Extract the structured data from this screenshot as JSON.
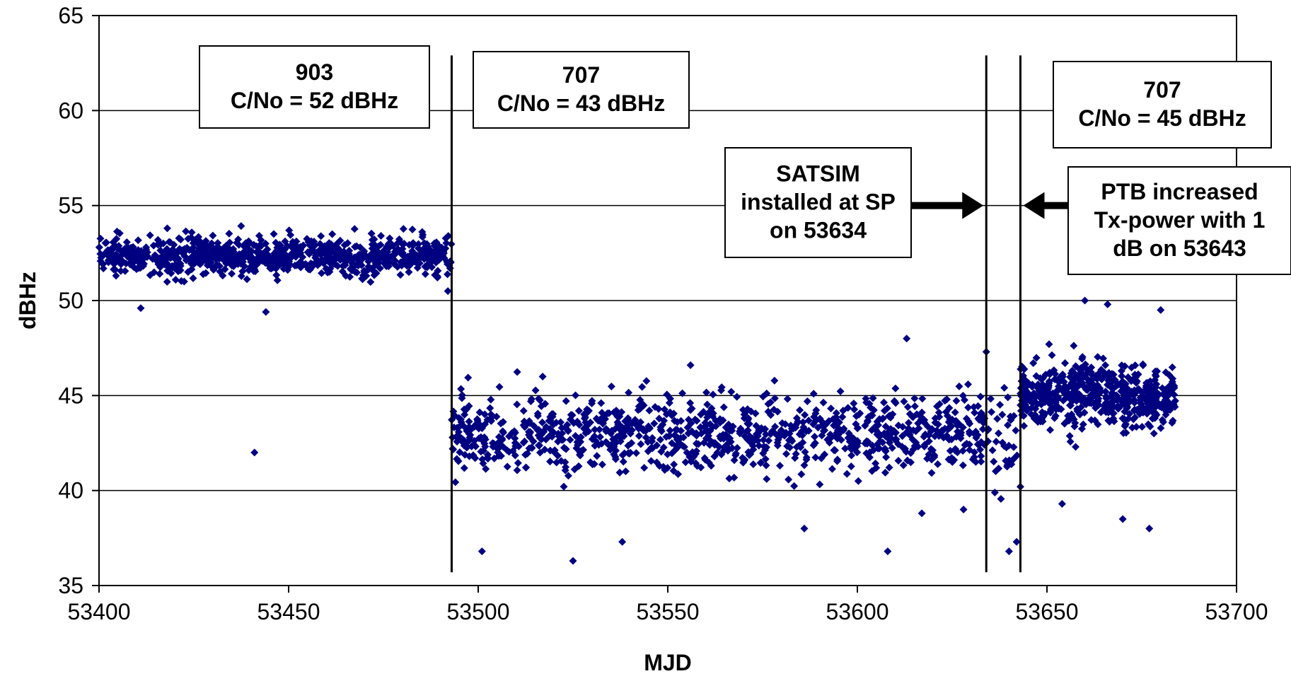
{
  "chart_data": {
    "type": "scatter",
    "xlabel": "MJD",
    "ylabel": "dBHz",
    "xlim": [
      53400,
      53700
    ],
    "ylim": [
      35,
      65
    ],
    "xticks": [
      53400,
      53450,
      53500,
      53550,
      53600,
      53650,
      53700
    ],
    "yticks": [
      35,
      40,
      45,
      50,
      55,
      60,
      65
    ],
    "grid": "horizontal",
    "marker_color": "#000080",
    "marker": "diamond",
    "vertical_lines": [
      53493,
      53634,
      53643
    ],
    "annotations": [
      {
        "lines": [
          "903",
          "C/No = 52 dBHz"
        ]
      },
      {
        "lines": [
          "707",
          "C/No = 43 dBHz"
        ]
      },
      {
        "lines": [
          "SATSIM",
          "installed at SP",
          "on 53634"
        ]
      },
      {
        "lines": [
          "707",
          "C/No = 45 dBHz"
        ]
      },
      {
        "lines": [
          "PTB increased",
          "Tx-power with 1",
          "dB on 53643"
        ]
      }
    ],
    "arrows": [
      {
        "target_x": 53634,
        "y": 55,
        "direction": "right"
      },
      {
        "target_x": 53643,
        "y": 55,
        "direction": "left"
      }
    ],
    "segments": [
      {
        "x_range": [
          53400,
          53493
        ],
        "center": 52.3,
        "spread": 0.9,
        "density": 9,
        "outliers": [
          [
            53411,
            49.6
          ],
          [
            53418,
            53.8
          ],
          [
            53441,
            42.0
          ],
          [
            53444,
            49.4
          ],
          [
            53492,
            50.5
          ]
        ]
      },
      {
        "x_range": [
          53493,
          53634
        ],
        "center": 43.0,
        "spread": 1.8,
        "density": 7,
        "outliers": [
          [
            53501,
            36.8
          ],
          [
            53517,
            46.0
          ],
          [
            53525,
            36.3
          ],
          [
            53538,
            37.3
          ],
          [
            53556,
            46.6
          ],
          [
            53586,
            38.0
          ],
          [
            53608,
            36.8
          ],
          [
            53613,
            48.0
          ],
          [
            53617,
            38.8
          ],
          [
            53628,
            39.0
          ]
        ]
      },
      {
        "x_range": [
          53634,
          53643
        ],
        "center": 42.5,
        "spread": 2.5,
        "density": 4,
        "outliers": [
          [
            53634,
            47.3
          ],
          [
            53640,
            36.8
          ],
          [
            53642,
            37.3
          ],
          [
            53643,
            40.2
          ]
        ]
      },
      {
        "x_range": [
          53643,
          53684
        ],
        "center": 45.0,
        "spread": 1.5,
        "density": 14,
        "outliers": [
          [
            53660,
            50.0
          ],
          [
            53666,
            49.8
          ],
          [
            53677,
            38.0
          ],
          [
            53680,
            49.5
          ],
          [
            53654,
            39.3
          ],
          [
            53670,
            38.5
          ]
        ]
      }
    ]
  }
}
